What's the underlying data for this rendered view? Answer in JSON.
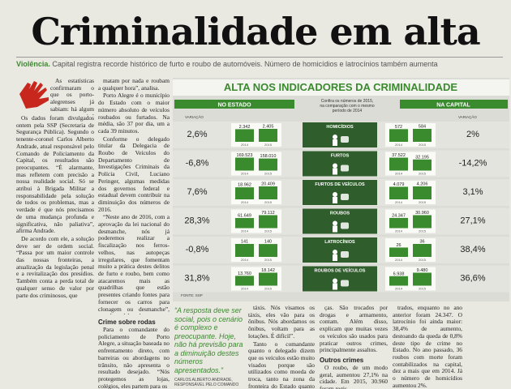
{
  "header": {
    "title": "Criminalidade em alta",
    "kicker": "Violência.",
    "subtitle": "Capital registra recorde histórico de furto e roubo de automóveis. Número de homicídios e latrocínios também aumenta"
  },
  "body": {
    "col1": [
      "As estatísticas confirmaram o que os porto-alegrenses já sabiam: há algum tempo a capital nunca foi tão perigosa. Em 2015, 9.480 carros foram roubados na cidade e 4.206, furtados, totalizando 13.686, um recorde desde que os crimes passaram a ser contabilizados estatisticamente, em 2002. Em relação a 2014, o roubo de carros aumentou 36,6%, outro índice histórico. Também houve aumento no número de homicídios e latrocínios, que é o roubo com morte.",
      "Os dados foram divulgados ontem pela SSP (Secretaria de Segurança Pública). Segundo o tenente-coronel Carlos Alberto Andrade, atual responsável pelo Comando de Policiamento da Capital, os resultados são preocupantes. “É alarmante, mas refletem com precisão a nossa realidade social. Só se atribui à Brigada Militar a responsabilidade pela solução de todos os problemas, mas a verdade é que nós precisamos de uma mudança profunda e significativa, não paliativa”, afirma Andrade.",
      "De acordo com ele, a solução deve ser de ordem social. “Passa por um maior controle das nossas fronteiras, a atualização da legislação penal e a revitalização dos presídios. Também conta a perda total de qualquer senso de valor por parte dos criminosos, que"
    ],
    "col2": [
      "matam por nada e roubam a qualquer hora”, analisa.",
      "Porto Alegre é o município do Estado com o maior número absoluto de veículos roubados ou furtados. Na média, são 37 por dia, um a cada 39 minutos.",
      "Conforme o delegado titular da Delegacia de Roubo de Veículos do Departamento de Investigações Criminais da Polícia Civil, Luciano Peringer, algumas medidas dos governos federal e estadual devem contribuir na diminuição dos números de 2016.",
      "“Neste ano de 2016, com a aprovação da lei nacional do desmanche, nós já poderemos realizar a fiscalização nos ferros-velhos, nas autopeças irregulares, que fomentam muito a prática destes delitos de furto e roubo, bem como atacaremos mais as quadrilhas que estão presentes criando fontes para fornecer os carros para clonagem ou desmanche”, ressalta o delegado.",
      "Peringer acredita que a falta de efetivo da Brigada Militar e da Polícia Civil e o pouco tempo de pena cumprido pelos criminosos são as principais razões para o crescimento dos índices."
    ],
    "col2b_head": "Crime sobre rodas",
    "col2b": [
      "Para o comandante do policiamento de Porto Alegre, a situação baseada no enfrentamento direto, com barreiras ou abordagens no trânsito, não apresenta o resultado desejado. “Nós protegemos as lojas, colégios, eles partem para os"
    ],
    "quote": "“A resposta deve ser social, pois o cenário é complexo e preocupante. Hoje, não há previsão para a diminuição destes números apresentados.”",
    "quote_author": "CARLOS ALBERTO ANDRADE, RESPONSÁVEL PELO COMANDO DO POLICIAMENTO DE POA",
    "col3": [
      "táxis. Nós visamos os táxis, eles vão para os ônibus. Nós abordamos os ônibus, voltam para as lotações. É difícil”.",
      "Tanto o comandante quanto o delegado dizem que os veículos estão muito visados porque são utilizados como moeda de troca, tanto na zona da fronteira do Estado quanto no comércio de pe-"
    ],
    "col4": [
      "ças. São trocados por drogas e armamento, contam. Além disso, explicam que muitas vezes os veículos são usados para praticar outros crimes, principalmente assaltos."
    ],
    "col4_head": "Outros crimes",
    "col4b": [
      "O roubo, de um modo geral, aumentou 27,1% na cidade. Em 2015, 30.960 foram regis-"
    ],
    "col5": [
      "trados, enquanto no ano anterior foram 24.347. O latrocínio foi ainda maior: 38,4% de aumento, destoando da queda de 0,8% deste tipo de crime no Estado. No ano passado, 36 roubos com morte foram contabilizados na capital, dez a mais que em 2014. Já o número de homicídios aumentou 2%."
    ]
  },
  "infographic": {
    "title": "ALTA NOS INDICADORES DA CRIMINALIDADE",
    "state_label": "NO ESTADO",
    "capital_label": "NA CAPITAL",
    "caption": [
      "Confira os números de 2015,",
      "na comparação com o mesmo",
      "período de 2014"
    ],
    "variation_label": "VARIAÇÃO",
    "years": [
      "2014",
      "2015"
    ],
    "source": "FONTE: SSP",
    "rows": [
      {
        "category": "HOMICÍDIOS",
        "state": {
          "variation": "2,6%",
          "values": [
            {
              "value": 2342,
              "label": "2.342"
            },
            {
              "value": 2405,
              "label": "2.405"
            }
          ]
        },
        "capital": {
          "variation": "2%",
          "values": [
            {
              "value": 572,
              "label": "572"
            },
            {
              "value": 584,
              "label": "584"
            }
          ]
        }
      },
      {
        "category": "FURTOS",
        "state": {
          "variation": "-6,8%",
          "values": [
            {
              "value": 169523,
              "label": "169.523"
            },
            {
              "value": 158010,
              "label": "158.010"
            }
          ]
        },
        "capital": {
          "variation": "-14,2%",
          "values": [
            {
              "value": 37522,
              "label": "37.522"
            },
            {
              "value": 32195,
              "label": "32.195"
            }
          ]
        }
      },
      {
        "category": "FURTOS DE VEÍCULOS",
        "state": {
          "variation": "7,6%",
          "values": [
            {
              "value": 18962,
              "label": "18.962"
            },
            {
              "value": 20409,
              "label": "20.409"
            }
          ]
        },
        "capital": {
          "variation": "3,1%",
          "values": [
            {
              "value": 4079,
              "label": "4.079"
            },
            {
              "value": 4206,
              "label": "4.206"
            }
          ]
        }
      },
      {
        "category": "ROUBOS",
        "state": {
          "variation": "28,3%",
          "values": [
            {
              "value": 61649,
              "label": "61.649"
            },
            {
              "value": 79112,
              "label": "79.112"
            }
          ]
        },
        "capital": {
          "variation": "27,1%",
          "values": [
            {
              "value": 24347,
              "label": "24.347"
            },
            {
              "value": 30960,
              "label": "30.960"
            }
          ]
        }
      },
      {
        "category": "LATROCÍNIOS",
        "state": {
          "variation": "-0,8%",
          "values": [
            141,
            140
          ]
        },
        "capital": {
          "variation": "38,4%",
          "values": [
            26,
            36
          ]
        }
      },
      {
        "category": "ROUBOS DE VEÍCULOS",
        "state": {
          "variation": "31,8%",
          "values": [
            {
              "value": 13760,
              "label": "13.760"
            },
            {
              "value": 18142,
              "label": "18.142"
            }
          ]
        },
        "capital": {
          "variation": "36,6%",
          "values": [
            {
              "value": 6938,
              "label": "6.938"
            },
            {
              "value": 9480,
              "label": "9.480"
            }
          ]
        }
      }
    ]
  }
}
